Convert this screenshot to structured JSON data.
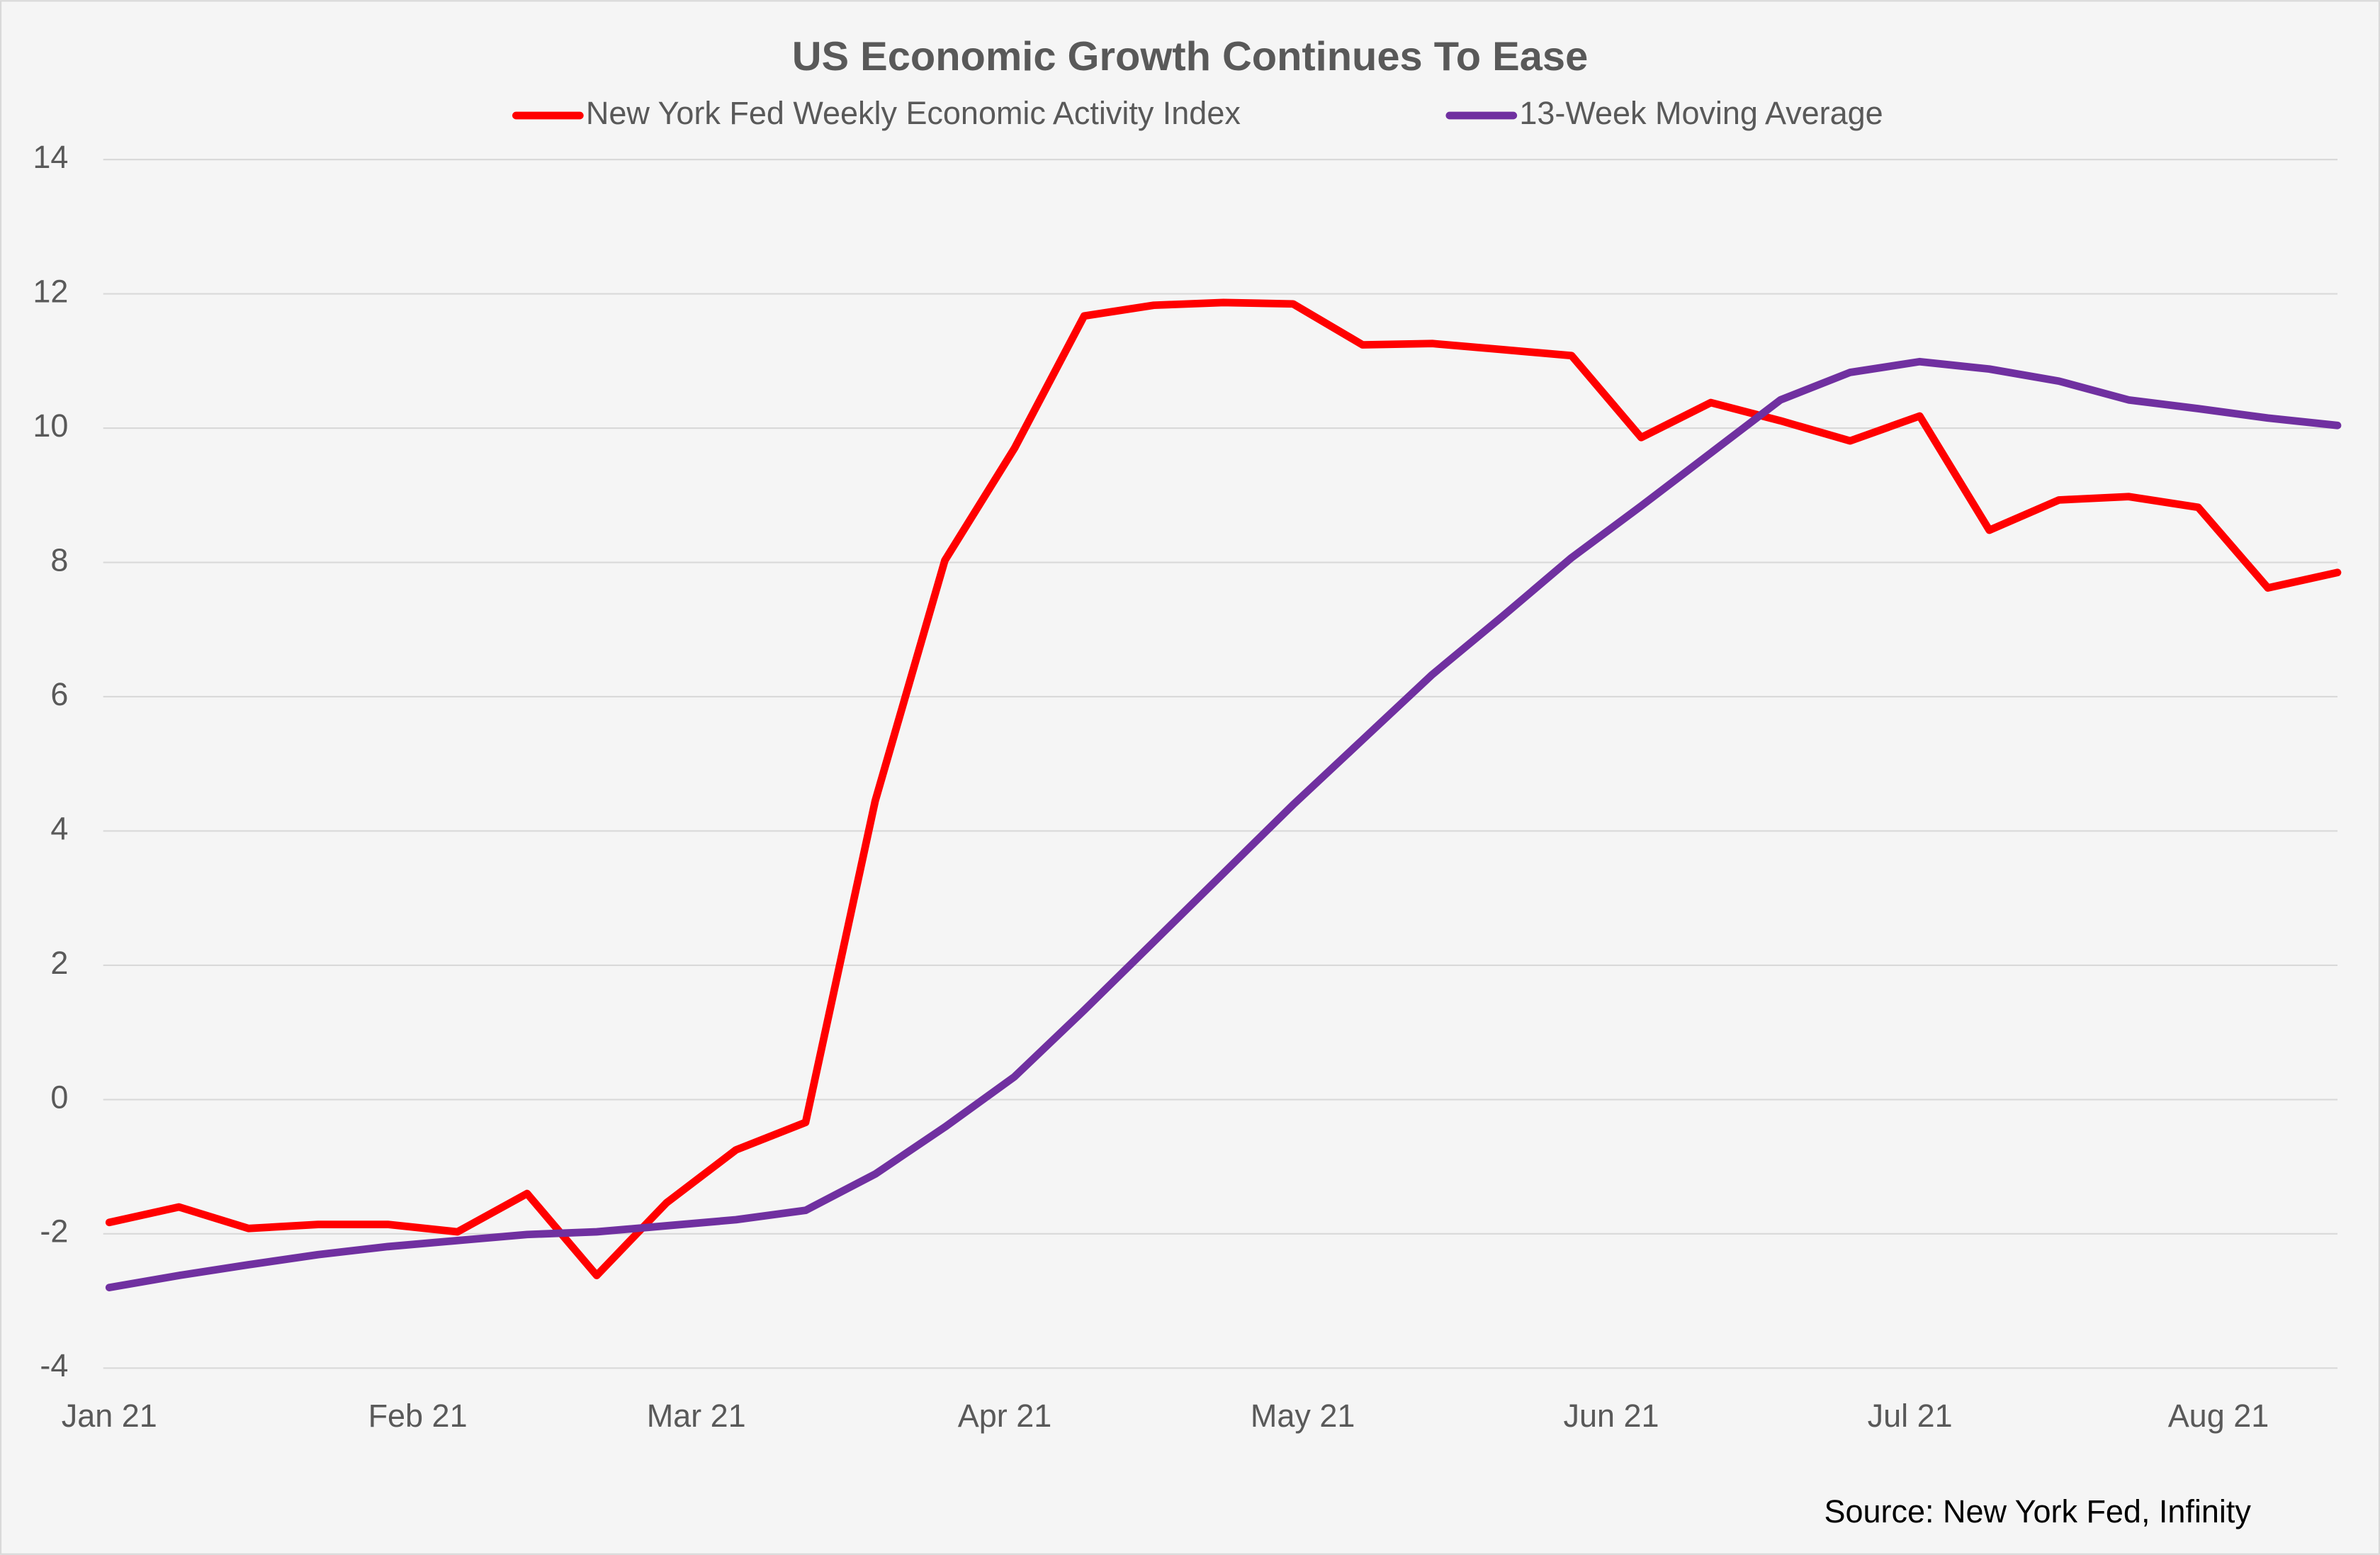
{
  "chart_data": {
    "type": "line",
    "title": "US Economic Growth Continues To Ease",
    "source": "Source: New York Fed, Infinity",
    "x": [
      0,
      1,
      2,
      3,
      4,
      5,
      6,
      7,
      8,
      9,
      10,
      11,
      12,
      13,
      14,
      15,
      16,
      17,
      18,
      19,
      20,
      21,
      22,
      23,
      24,
      25,
      26,
      27,
      28,
      29,
      30,
      31,
      32
    ],
    "series": [
      {
        "name": "New York Fed Weekly Economic Activity Index",
        "color": "#ff0000",
        "values": [
          -1.83,
          -1.6,
          -1.92,
          -1.86,
          -1.86,
          -1.97,
          -1.4,
          -2.62,
          -1.54,
          -0.75,
          -0.34,
          4.45,
          8.03,
          9.7,
          11.67,
          11.83,
          11.87,
          11.85,
          11.24,
          11.26,
          11.17,
          11.08,
          9.86,
          10.38,
          10.11,
          9.81,
          10.18,
          8.48,
          8.93,
          8.98,
          8.82,
          7.62,
          7.85
        ]
      },
      {
        "name": "13-Week Moving Average",
        "color": "#7030a0",
        "values": [
          -2.8,
          -2.62,
          -2.46,
          -2.31,
          -2.19,
          -2.1,
          -2.01,
          -1.97,
          -1.88,
          -1.79,
          -1.65,
          -1.11,
          -0.41,
          0.34,
          1.33,
          2.35,
          3.37,
          4.39,
          5.36,
          6.33,
          7.19,
          8.07,
          8.84,
          9.63,
          10.42,
          10.83,
          10.99,
          10.88,
          10.7,
          10.42,
          10.29,
          10.15,
          10.04
        ]
      }
    ],
    "xlim": [
      0,
      32
    ],
    "xticks": [
      {
        "value": 0,
        "label": "Jan 21"
      },
      {
        "value": 4.43,
        "label": "Feb 21"
      },
      {
        "value": 8.43,
        "label": "Mar 21"
      },
      {
        "value": 12.86,
        "label": "Apr 21"
      },
      {
        "value": 17.14,
        "label": "May 21"
      },
      {
        "value": 21.57,
        "label": "Jun 21"
      },
      {
        "value": 25.86,
        "label": "Jul 21"
      },
      {
        "value": 30.29,
        "label": "Aug 21"
      }
    ],
    "ylim": [
      -4,
      14
    ],
    "yticks": [
      -4,
      -2,
      0,
      2,
      4,
      6,
      8,
      10,
      12,
      14
    ],
    "grid": true,
    "legend": "top"
  }
}
